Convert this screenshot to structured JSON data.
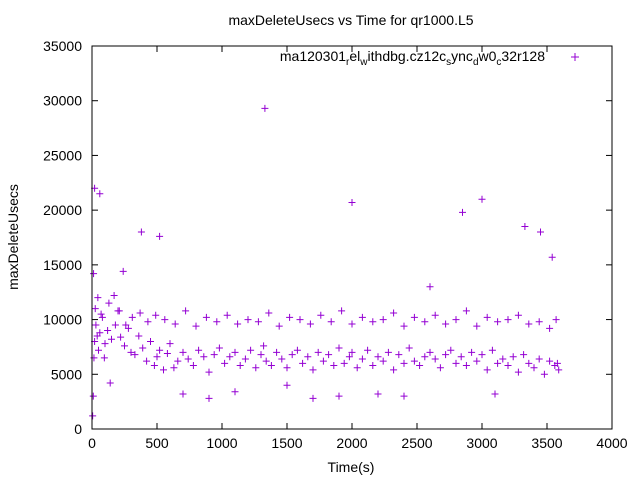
{
  "chart_data": {
    "type": "scatter",
    "title": "maxDeleteUsecs vs Time for qr1000.L5",
    "xlabel": "Time(s)",
    "ylabel": "maxDeleteUsecs",
    "xlim": [
      0,
      4000
    ],
    "ylim": [
      0,
      35000
    ],
    "x_ticks": [
      "0",
      "500",
      "1000",
      "1500",
      "2000",
      "2500",
      "3000",
      "3500",
      "4000"
    ],
    "y_ticks": [
      "0",
      "5000",
      "10000",
      "15000",
      "20000",
      "25000",
      "30000",
      "35000"
    ],
    "grid": false,
    "legend_position": "top-right",
    "marker": "plus",
    "series": [
      {
        "legend_parts": [
          {
            "t": "ma120301",
            "sub": false
          },
          {
            "t": "r",
            "sub": true
          },
          {
            "t": "el",
            "sub": false
          },
          {
            "t": "w",
            "sub": true
          },
          {
            "t": "ithdbg.cz12c",
            "sub": false
          },
          {
            "t": "s",
            "sub": true
          },
          {
            "t": "ync",
            "sub": false
          },
          {
            "t": "d",
            "sub": true
          },
          {
            "t": "w0",
            "sub": false
          },
          {
            "t": "c",
            "sub": true
          },
          {
            "t": "32r128",
            "sub": false
          }
        ],
        "color": "#9400d3",
        "x": [
          5,
          10,
          15,
          20,
          30,
          40,
          50,
          60,
          80,
          100,
          120,
          150,
          180,
          200,
          220,
          250,
          280,
          300,
          330,
          360,
          390,
          420,
          450,
          480,
          500,
          520,
          550,
          580,
          600,
          630,
          660,
          700,
          740,
          780,
          820,
          860,
          900,
          940,
          980,
          1020,
          1060,
          1100,
          1140,
          1180,
          1220,
          1260,
          1300,
          1320,
          1340,
          1380,
          1420,
          1460,
          1500,
          1540,
          1580,
          1620,
          1660,
          1700,
          1740,
          1780,
          1820,
          1860,
          1900,
          1940,
          1980,
          2000,
          2040,
          2080,
          2120,
          2160,
          2200,
          2240,
          2280,
          2320,
          2360,
          2400,
          2440,
          2480,
          2520,
          2560,
          2600,
          2640,
          2680,
          2720,
          2760,
          2800,
          2840,
          2880,
          2920,
          2960,
          3000,
          3040,
          3080,
          3120,
          3160,
          3200,
          3240,
          3280,
          3320,
          3360,
          3400,
          3440,
          3480,
          3520,
          3560,
          3580,
          3590,
          12,
          25,
          45,
          70,
          95,
          130,
          170,
          210,
          260,
          310,
          370,
          430,
          490,
          560,
          640,
          720,
          800,
          880,
          960,
          1040,
          1120,
          1200,
          1280,
          1360,
          1440,
          1520,
          1600,
          1680,
          1760,
          1840,
          1920,
          2000,
          2080,
          2160,
          2240,
          2320,
          2400,
          2480,
          2560,
          2640,
          2720,
          2800,
          2880,
          2960,
          3040,
          3120,
          3200,
          3280,
          3360,
          3440,
          3520,
          3570,
          20,
          60,
          140,
          240,
          380,
          520,
          700,
          900,
          1100,
          1330,
          1500,
          1700,
          1900,
          2000,
          2200,
          2400,
          2600,
          2850,
          3000,
          3100,
          3330,
          3450,
          3540
        ],
        "y": [
          1200,
          3000,
          6500,
          8000,
          9500,
          8500,
          7200,
          8800,
          10200,
          7800,
          9000,
          8200,
          9500,
          10800,
          8400,
          7600,
          9200,
          7000,
          6800,
          8500,
          7400,
          6200,
          8000,
          5800,
          6600,
          7200,
          5400,
          6900,
          7800,
          5600,
          6200,
          7000,
          6400,
          5800,
          7200,
          6600,
          5200,
          6800,
          7400,
          6000,
          6600,
          7000,
          5800,
          6400,
          7200,
          5600,
          6800,
          7600,
          6200,
          5800,
          7000,
          6400,
          5600,
          6800,
          7200,
          6000,
          6600,
          5400,
          7000,
          6200,
          6800,
          5800,
          7400,
          6000,
          6600,
          7000,
          5600,
          6400,
          7200,
          5800,
          6600,
          6200,
          7000,
          5400,
          6800,
          6000,
          7400,
          6200,
          5800,
          6600,
          7000,
          6400,
          5600,
          6800,
          7200,
          6000,
          6600,
          5800,
          7000,
          6200,
          6800,
          5400,
          7200,
          6000,
          6400,
          5800,
          6600,
          5200,
          6800,
          6000,
          5600,
          6400,
          5000,
          6200,
          5800,
          6000,
          5400,
          14200,
          11000,
          12000,
          10500,
          6500,
          11500,
          12200,
          10800,
          9500,
          10200,
          10600,
          9800,
          10400,
          10000,
          9600,
          10800,
          9400,
          10200,
          9800,
          10400,
          9600,
          10000,
          9800,
          10600,
          9400,
          10200,
          10000,
          9600,
          10400,
          9800,
          10800,
          9600,
          10200,
          9800,
          10000,
          10600,
          9400,
          10200,
          9800,
          10400,
          9600,
          10000,
          10800,
          9400,
          10200,
          9800,
          10000,
          10400,
          9600,
          9800,
          9200,
          10000,
          22000,
          21500,
          4200,
          14400,
          18000,
          17600,
          3200,
          2800,
          3400,
          29300,
          4000,
          2800,
          3000,
          20700,
          3200,
          3000,
          13000,
          19800,
          21000,
          3200,
          18500,
          18000,
          15700
        ]
      }
    ]
  }
}
